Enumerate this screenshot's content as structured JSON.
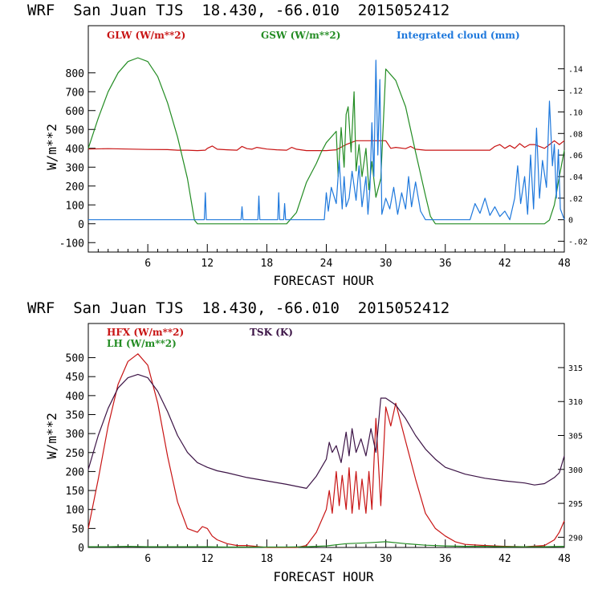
{
  "colors": {
    "red": "#c81414",
    "green": "#238c23",
    "blue": "#1e78dc",
    "purple": "#3c1446"
  },
  "chart_data": [
    {
      "type": "line",
      "title": "WRF  San Juan TJS  18.430, -66.010  2015052412",
      "xlabel": "FORECAST HOUR",
      "ylabel": "W/m**2",
      "xlim": [
        0,
        48
      ],
      "ylim": [
        -150,
        1050
      ],
      "y2lim": [
        -0.03,
        0.18
      ],
      "xticks": [
        "6",
        "12",
        "18",
        "24",
        "30",
        "36",
        "42",
        "48"
      ],
      "yticks": [
        "-100",
        "0",
        "100",
        "200",
        "300",
        "400",
        "500",
        "600",
        "700",
        "800"
      ],
      "y2ticks": [
        "-.02",
        "0",
        ".02",
        ".04",
        ".06",
        ".08",
        ".10",
        ".12",
        ".14"
      ],
      "series": [
        {
          "name": "GLW (W/m**2)",
          "axis": "left",
          "color": "red",
          "x": [
            0,
            2,
            4,
            6,
            8,
            9,
            10,
            11,
            11.8,
            12,
            12.5,
            13,
            14,
            15,
            15.5,
            16,
            16.5,
            17,
            18,
            19,
            20,
            20.5,
            21,
            22,
            23,
            24,
            25,
            26,
            27,
            28,
            29,
            30,
            30.5,
            31,
            32,
            32.5,
            33,
            34,
            35,
            36,
            37,
            38,
            39,
            40,
            40.5,
            41,
            41.5,
            42,
            42.5,
            43,
            43.5,
            44,
            44.5,
            45,
            46,
            46.5,
            47,
            47.5,
            48
          ],
          "y": [
            396,
            398,
            396,
            394,
            393,
            390,
            390,
            388,
            390,
            400,
            412,
            395,
            392,
            390,
            410,
            398,
            395,
            405,
            396,
            392,
            390,
            405,
            395,
            388,
            388,
            388,
            392,
            420,
            440,
            440,
            440,
            440,
            400,
            405,
            398,
            410,
            395,
            390,
            390,
            390,
            390,
            390,
            390,
            390,
            390,
            410,
            420,
            400,
            415,
            400,
            425,
            405,
            420,
            420,
            400,
            420,
            440,
            420,
            440
          ]
        },
        {
          "name": "GSW (W/m**2)",
          "axis": "left",
          "color": "green",
          "x": [
            0,
            1,
            2,
            3,
            4,
            5,
            6,
            7,
            8,
            9,
            10,
            10.7,
            11,
            20,
            21,
            21.5,
            22,
            23,
            23.5,
            24,
            25,
            25.2,
            25.5,
            25.8,
            26,
            26.2,
            26.5,
            26.8,
            27,
            27.3,
            27.6,
            28,
            28.3,
            28.6,
            29,
            29.5,
            30,
            31,
            32,
            33,
            34,
            34.5,
            35,
            46,
            46.5,
            47,
            47.5,
            48
          ],
          "y": [
            400,
            560,
            700,
            800,
            860,
            880,
            860,
            780,
            640,
            460,
            240,
            20,
            0,
            0,
            60,
            140,
            220,
            320,
            380,
            430,
            490,
            250,
            510,
            300,
            580,
            620,
            380,
            700,
            280,
            420,
            250,
            400,
            180,
            330,
            140,
            240,
            820,
            760,
            620,
            380,
            150,
            40,
            0,
            0,
            20,
            100,
            250,
            390
          ]
        },
        {
          "name": "Integrated cloud (mm)",
          "axis": "right",
          "color": "blue",
          "x": [
            0,
            11.7,
            11.8,
            11.9,
            15.4,
            15.5,
            15.6,
            17.1,
            17.2,
            17.3,
            19.1,
            19.2,
            19.3,
            19.7,
            19.8,
            19.9,
            23.8,
            24,
            24.2,
            24.5,
            25,
            25.3,
            25.6,
            25.8,
            26,
            26.3,
            26.6,
            27,
            27.3,
            27.6,
            28,
            28.2,
            28.4,
            28.6,
            28.8,
            29,
            29.2,
            29.4,
            29.6,
            30,
            30.4,
            30.8,
            31.2,
            31.6,
            32,
            32.3,
            32.6,
            33,
            33.5,
            34,
            38.5,
            39,
            39.5,
            40,
            40.5,
            41,
            41.5,
            42,
            42.5,
            43,
            43.3,
            43.6,
            44,
            44.3,
            44.6,
            44.9,
            45.2,
            45.5,
            45.8,
            46.2,
            46.5,
            46.8,
            47,
            47.2,
            47.4,
            47.6,
            48
          ],
          "y": [
            0,
            0,
            0.025,
            0,
            0,
            0.012,
            0,
            0,
            0.022,
            0,
            0,
            0.025,
            0,
            0,
            0.015,
            0,
            0,
            0.025,
            0.008,
            0.03,
            0.015,
            0.055,
            0.01,
            0.04,
            0.012,
            0.02,
            0.045,
            0.018,
            0.05,
            0.012,
            0.04,
            0.005,
            0.03,
            0.09,
            0.04,
            0.148,
            0.06,
            0.13,
            0.005,
            0.02,
            0.01,
            0.03,
            0.005,
            0.025,
            0.01,
            0.04,
            0.012,
            0.035,
            0.008,
            0,
            0,
            0.015,
            0.006,
            0.02,
            0.004,
            0.012,
            0.003,
            0.008,
            0,
            0.02,
            0.05,
            0.015,
            0.04,
            0.005,
            0.06,
            0.01,
            0.085,
            0.02,
            0.055,
            0.03,
            0.11,
            0.05,
            0.07,
            0.02,
            0.065,
            0.01,
            0
          ]
        }
      ]
    },
    {
      "type": "line",
      "title": "WRF  San Juan TJS  18.430, -66.010  2015052412",
      "xlabel": "FORECAST HOUR",
      "ylabel": "W/m**2",
      "xlim": [
        0,
        48
      ],
      "ylim": [
        0,
        590
      ],
      "y2lim": [
        288.5,
        321.5
      ],
      "xticks": [
        "6",
        "12",
        "18",
        "24",
        "30",
        "36",
        "42",
        "48"
      ],
      "yticks": [
        "0",
        "50",
        "100",
        "150",
        "200",
        "250",
        "300",
        "350",
        "400",
        "450",
        "500"
      ],
      "y2ticks": [
        "290",
        "295",
        "300",
        "305",
        "310",
        "315"
      ],
      "series": [
        {
          "name": "HFX (W/m**2)",
          "axis": "left",
          "color": "red",
          "x": [
            0,
            1,
            2,
            3,
            4,
            5,
            6,
            7,
            8,
            9,
            10,
            11,
            11.5,
            12,
            12.5,
            13,
            14,
            15,
            16,
            18,
            20,
            21,
            22,
            23,
            24,
            24.3,
            24.6,
            25,
            25.3,
            25.6,
            26,
            26.3,
            26.6,
            27,
            27.3,
            27.6,
            28,
            28.3,
            28.6,
            29,
            29.5,
            30,
            30.5,
            31,
            32,
            33,
            34,
            35,
            36,
            37,
            38,
            40,
            42,
            44,
            46,
            47,
            47.5,
            48
          ],
          "y": [
            50,
            180,
            320,
            430,
            490,
            510,
            480,
            380,
            240,
            120,
            50,
            40,
            55,
            50,
            30,
            20,
            10,
            5,
            5,
            0,
            0,
            0,
            5,
            40,
            100,
            150,
            90,
            200,
            110,
            190,
            100,
            210,
            90,
            200,
            100,
            180,
            90,
            200,
            100,
            340,
            110,
            370,
            320,
            380,
            280,
            180,
            90,
            50,
            30,
            15,
            8,
            5,
            3,
            2,
            5,
            20,
            40,
            70
          ]
        },
        {
          "name": "LH (W/m**2)",
          "axis": "left",
          "color": "green",
          "x": [
            0,
            2,
            4,
            6,
            8,
            10,
            12,
            14,
            16,
            18,
            20,
            22,
            24,
            26,
            28,
            30,
            32,
            34,
            36,
            38,
            40,
            42,
            44,
            46,
            48
          ],
          "y": [
            2,
            2,
            3,
            2,
            2,
            2,
            2,
            1,
            1,
            1,
            1,
            2,
            4,
            10,
            12,
            15,
            10,
            6,
            4,
            3,
            3,
            2,
            2,
            2,
            3
          ]
        },
        {
          "name": "TSK (K)",
          "axis": "right",
          "color": "purple",
          "x": [
            0,
            1,
            2,
            3,
            4,
            5,
            6,
            7,
            8,
            9,
            10,
            11,
            12,
            13,
            14,
            16,
            18,
            20,
            21,
            22,
            23,
            24,
            24.3,
            24.6,
            25,
            25.5,
            26,
            26.3,
            26.6,
            27,
            27.5,
            28,
            28.5,
            29,
            29.5,
            30,
            31,
            32,
            33,
            34,
            35,
            36,
            38,
            40,
            42,
            44,
            45,
            46,
            47,
            47.5,
            48
          ],
          "y": [
            300,
            305,
            309,
            312,
            313.5,
            314,
            313.5,
            311.5,
            308.5,
            305,
            302.5,
            301,
            300.3,
            299.8,
            299.5,
            298.8,
            298.3,
            297.8,
            297.5,
            297.2,
            299,
            301.5,
            304,
            302.5,
            303.5,
            301,
            305.5,
            302,
            306,
            302.5,
            304.5,
            302,
            306,
            302.5,
            310.5,
            310.5,
            309.5,
            307.5,
            305,
            303,
            301.5,
            300.3,
            299.3,
            298.7,
            298.3,
            298,
            297.7,
            297.9,
            298.8,
            299.5,
            302
          ]
        }
      ]
    }
  ]
}
